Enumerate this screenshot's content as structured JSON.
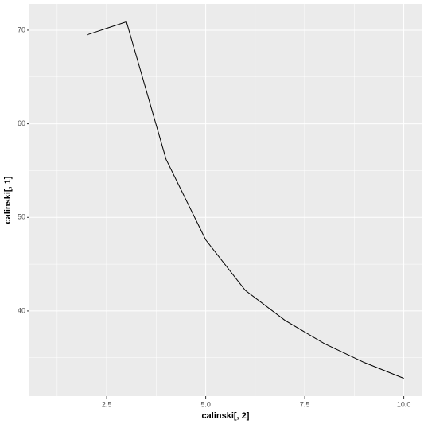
{
  "chart_data": {
    "type": "line",
    "x_label": "calinski[, 2]",
    "y_label": "calinski[, 1]",
    "x": [
      2,
      3,
      4,
      5,
      6,
      7,
      8,
      9,
      10
    ],
    "series": [
      {
        "color": "#000000",
        "values": [
          69.5,
          70.9,
          56.2,
          47.6,
          42.2,
          39.0,
          36.5,
          34.5,
          32.8
        ]
      }
    ],
    "xlim": [
      0.55,
      10.45
    ],
    "xticks": [
      2.5,
      {
        "value": 5,
        "label": "5.0"
      },
      7.5,
      {
        "value": 10,
        "label": "10.0"
      }
    ],
    "xminorticks": [
      1.25,
      3.75,
      6.25,
      8.75
    ],
    "ylim": [
      30.9,
      72.8
    ],
    "yticks": [
      40,
      50,
      60,
      70
    ],
    "yminorticks": [
      35,
      45,
      55,
      65
    ],
    "grid": true
  }
}
